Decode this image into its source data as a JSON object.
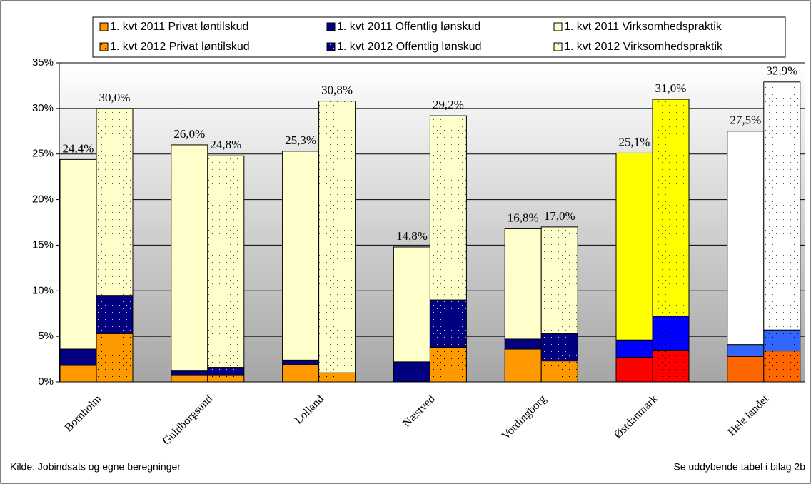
{
  "chart_data": {
    "type": "bar",
    "stacked": true,
    "categories": [
      "Bornholm",
      "Guldborgsund",
      "Lolland",
      "Næstved",
      "Vordingborg",
      "Østdanmark",
      "Hele landet"
    ],
    "series": [
      {
        "name": "1. kvt 2011 Privat løntilskud",
        "stack": "2011",
        "color": "#ff9900",
        "colors": [
          "#ff9900",
          "#ff9900",
          "#ff9900",
          "#ff9900",
          "#ff9900",
          "#ff0000",
          "#ff6600"
        ],
        "values": [
          1.8,
          0.7,
          1.9,
          0,
          3.6,
          2.7,
          2.8
        ]
      },
      {
        "name": "1. kvt 2011 Offentlig lønskud",
        "stack": "2011",
        "color": "#000080",
        "colors": [
          "#000080",
          "#000080",
          "#000080",
          "#000080",
          "#000080",
          "#0000ff",
          "#3366ff"
        ],
        "values": [
          1.8,
          0.5,
          0.5,
          2.2,
          1.1,
          1.9,
          1.3
        ]
      },
      {
        "name": "1. kvt 2011 Virksomhedspraktik",
        "stack": "2011",
        "color": "#ffffcc",
        "colors": [
          "#ffffcc",
          "#ffffcc",
          "#ffffcc",
          "#ffffcc",
          "#ffffcc",
          "#ffff00",
          "#ffffff"
        ],
        "values": [
          20.8,
          24.8,
          22.9,
          12.6,
          12.1,
          20.5,
          23.4
        ]
      },
      {
        "name": "1. kvt 2012 Privat løntilskud",
        "stack": "2012",
        "pattern": "dots",
        "color": "#ff9900",
        "colors": [
          "#ff9900",
          "#ff9900",
          "#ff9900",
          "#ff9900",
          "#ff9900",
          "#ff0000",
          "#ff6600"
        ],
        "values": [
          5.3,
          0.7,
          1.0,
          3.8,
          2.3,
          3.5,
          3.4
        ]
      },
      {
        "name": "1. kvt 2012 Offentlig lønskud",
        "stack": "2012",
        "pattern": "dots",
        "color": "#000080",
        "colors": [
          "#000080",
          "#000080",
          "#000080",
          "#000080",
          "#000080",
          "#0000ff",
          "#3366ff"
        ],
        "values": [
          4.2,
          0.9,
          0,
          5.2,
          3.0,
          3.7,
          2.3
        ]
      },
      {
        "name": "1. kvt 2012 Virksomhedspraktik",
        "stack": "2012",
        "pattern": "dots",
        "color": "#ffffcc",
        "colors": [
          "#ffffcc",
          "#ffffcc",
          "#ffffcc",
          "#ffffcc",
          "#ffffcc",
          "#ffff00",
          "#ffffff"
        ],
        "values": [
          20.5,
          23.2,
          29.8,
          20.2,
          11.7,
          23.8,
          27.2
        ]
      }
    ],
    "totals": [
      {
        "stack": "2011",
        "values": [
          24.4,
          26.0,
          25.3,
          14.8,
          16.8,
          25.1,
          27.5
        ],
        "value_labels": [
          "24,4%",
          "26,0%",
          "25,3%",
          "14,8%",
          "16,8%",
          "25,1%",
          "27,5%"
        ]
      },
      {
        "stack": "2012",
        "values": [
          30.0,
          24.8,
          30.8,
          29.2,
          17.0,
          31.0,
          32.9
        ],
        "value_labels": [
          "30,0%",
          "24,8%",
          "30,8%",
          "29,2%",
          "17,0%",
          "31,0%",
          "32,9%"
        ]
      }
    ],
    "ylim": [
      0,
      35
    ],
    "yticks": [
      {
        "value": 0,
        "label": "0%"
      },
      {
        "value": 5,
        "label": "5%"
      },
      {
        "value": 10,
        "label": "10%"
      },
      {
        "value": 15,
        "label": "15%"
      },
      {
        "value": 20,
        "label": "20%"
      },
      {
        "value": 25,
        "label": "25%"
      },
      {
        "value": 30,
        "label": "30%"
      },
      {
        "value": 35,
        "label": "35%"
      }
    ],
    "grid": true,
    "legend": "top",
    "source": "Kilde: Jobindsats og egne beregninger",
    "note": "Se uddybende tabel i bilag 2b"
  }
}
